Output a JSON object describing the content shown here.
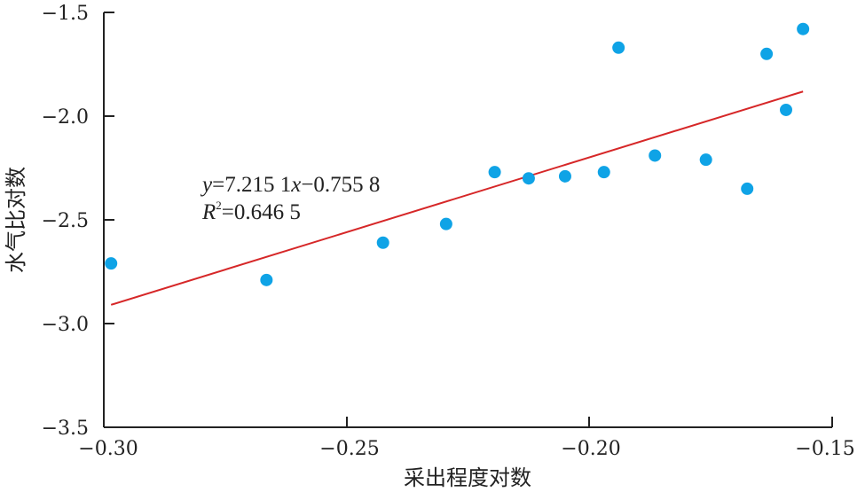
{
  "chart_data": {
    "type": "scatter",
    "xlabel": "采出程度对数",
    "ylabel": "水气比对数",
    "xlim": [
      -0.3,
      -0.15
    ],
    "ylim": [
      -3.5,
      -1.5
    ],
    "xticks": [
      "−0.30",
      "−0.25",
      "−0.20",
      "−0.15"
    ],
    "yticks": [
      "−1.5",
      "−2.0",
      "−2.5",
      "−3.0",
      "−3.5"
    ],
    "grid": false,
    "points": [
      {
        "x": -0.2985,
        "y": -2.71
      },
      {
        "x": -0.2665,
        "y": -2.79
      },
      {
        "x": -0.2425,
        "y": -2.61
      },
      {
        "x": -0.2295,
        "y": -2.52
      },
      {
        "x": -0.2195,
        "y": -2.27
      },
      {
        "x": -0.2125,
        "y": -2.3
      },
      {
        "x": -0.205,
        "y": -2.29
      },
      {
        "x": -0.197,
        "y": -2.27
      },
      {
        "x": -0.194,
        "y": -1.67
      },
      {
        "x": -0.1865,
        "y": -2.19
      },
      {
        "x": -0.176,
        "y": -2.21
      },
      {
        "x": -0.1675,
        "y": -2.35
      },
      {
        "x": -0.1635,
        "y": -1.7
      },
      {
        "x": -0.1595,
        "y": -1.97
      },
      {
        "x": -0.156,
        "y": -1.58
      }
    ],
    "fit": {
      "slope": 7.2151,
      "intercept": -0.7558,
      "x_range": [
        -0.2985,
        -0.156
      ]
    },
    "annotation": {
      "equation": {
        "y": "y",
        "eq1": "=7.215 1",
        "x": "x",
        "eq2": "−0.755 8"
      },
      "r2": {
        "R": "R",
        "sup": "2",
        "rest": "=0.646 5"
      }
    },
    "colors": {
      "points": "#0fa3e6",
      "fit": "#d62728",
      "axis": "#222222"
    }
  }
}
